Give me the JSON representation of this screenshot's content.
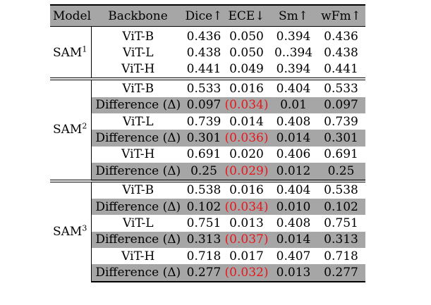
{
  "header": [
    "Model",
    "Backbone",
    "Dice↑",
    "ECE↓",
    "Sm↑",
    "wFm↑"
  ],
  "groups": [
    {
      "model": "SAM",
      "sup": "1",
      "rows": [
        {
          "backbone": "ViT-B",
          "dice": "0.436",
          "ece": "0.050",
          "sm": "0.394",
          "wfm": "0.436"
        },
        {
          "backbone": "ViT-L",
          "dice": "0.438",
          "ece": "0.050",
          "sm": "0..394",
          "wfm": "0.438"
        },
        {
          "backbone": "ViT-H",
          "dice": "0.441",
          "ece": "0.049",
          "sm": "0.394",
          "wfm": "0.441"
        }
      ]
    },
    {
      "model": "SAM",
      "sup": "2",
      "rows": [
        {
          "backbone": "ViT-B",
          "dice": "0.533",
          "ece": "0.016",
          "sm": "0.404",
          "wfm": "0.533"
        },
        {
          "backbone": "Difference (Δ)",
          "dice": "0.097",
          "ece": "(0.034)",
          "sm": "0.01",
          "wfm": "0.097"
        },
        {
          "backbone": "ViT-L",
          "dice": "0.739",
          "ece": "0.014",
          "sm": "0.408",
          "wfm": "0.739"
        },
        {
          "backbone": "Difference (Δ)",
          "dice": "0.301",
          "ece": "(0.036)",
          "sm": "0.014",
          "wfm": "0.301"
        },
        {
          "backbone": "ViT-H",
          "dice": "0.691",
          "ece": "0.020",
          "sm": "0.406",
          "wfm": "0.691"
        },
        {
          "backbone": "Difference (Δ)",
          "dice": "0.25",
          "ece": "(0.029)",
          "sm": "0.012",
          "wfm": "0.25"
        }
      ]
    },
    {
      "model": "SAM",
      "sup": "3",
      "rows": [
        {
          "backbone": "ViT-B",
          "dice": "0.538",
          "ece": "0.016",
          "sm": "0.404",
          "wfm": "0.538"
        },
        {
          "backbone": "Difference (Δ)",
          "dice": "0.102",
          "ece": "(0.034)",
          "sm": "0.010",
          "wfm": "0.102"
        },
        {
          "backbone": "ViT-L",
          "dice": "0.751",
          "ece": "0.013",
          "sm": "0.408",
          "wfm": "0.751"
        },
        {
          "backbone": "Difference (Δ)",
          "dice": "0.313",
          "ece": "(0.037)",
          "sm": "0.014",
          "wfm": "0.313"
        },
        {
          "backbone": "ViT-H",
          "dice": "0.718",
          "ece": "0.017",
          "sm": "0.407",
          "wfm": "0.718"
        },
        {
          "backbone": "Difference (Δ)",
          "dice": "0.277",
          "ece": "(0.032)",
          "sm": "0.013",
          "wfm": "0.277"
        }
      ]
    }
  ],
  "colors": {
    "shade": "#a6a6a6",
    "negative_diff": "#e8161b"
  }
}
